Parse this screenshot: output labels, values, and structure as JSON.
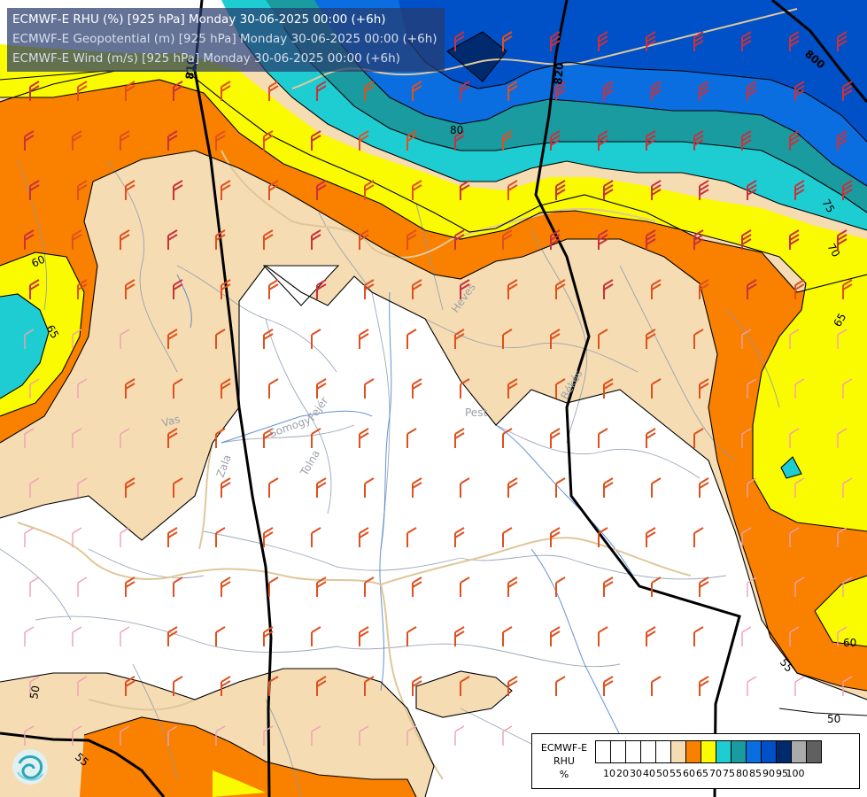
{
  "titles": {
    "line1": "ECMWF-E RHU (%) [925 hPa] Monday 30-06-2025 00:00 (+6h)",
    "line2": "ECMWF-E Geopotential (m) [925 hPa] Monday 30-06-2025 00:00 (+6h)",
    "line3": "ECMWF-E Wind (m/s) [925 hPa] Monday 30-06-2025 00:00 (+6h)"
  },
  "legend": {
    "label_line1": "ECMWF-E",
    "label_line2": "RHU",
    "label_line3": "%",
    "ticks": [
      "10",
      "20",
      "30",
      "40",
      "50",
      "55",
      "60",
      "65",
      "70",
      "75",
      "80",
      "85",
      "90",
      "95",
      "100"
    ],
    "colors": [
      "#ffffff",
      "#ffffff",
      "#ffffff",
      "#ffffff",
      "#ffffff",
      "#f6dcb2",
      "#fa8000",
      "#fafa00",
      "#1ecdd2",
      "#199ba0",
      "#0a6ee0",
      "#0050c8",
      "#002a6e",
      "#aaaaaa",
      "#606060"
    ]
  },
  "contour_labels": {
    "rhu_60_left": "60",
    "rhu_65_left": "65",
    "rhu_80_top": "80",
    "rhu_75_right": "75",
    "rhu_70_right": "70",
    "rhu_65_right": "65",
    "rhu_60_right": "60",
    "rhu_55_right": "55",
    "rhu_50_right": "50",
    "rhu_50_left": "50",
    "rhu_55_bottom": "55"
  },
  "geopotential_labels": {
    "z_810": "810",
    "z_820": "820",
    "z_800": "800"
  },
  "places": {
    "vas": "Vas",
    "somogy": "Somogy",
    "fejer": "Fejér",
    "zala": "Zala",
    "tolna": "Tolna",
    "heves": "Heves",
    "pest": "Pest",
    "bekes": "Békés"
  },
  "logo": "swirl-logo"
}
